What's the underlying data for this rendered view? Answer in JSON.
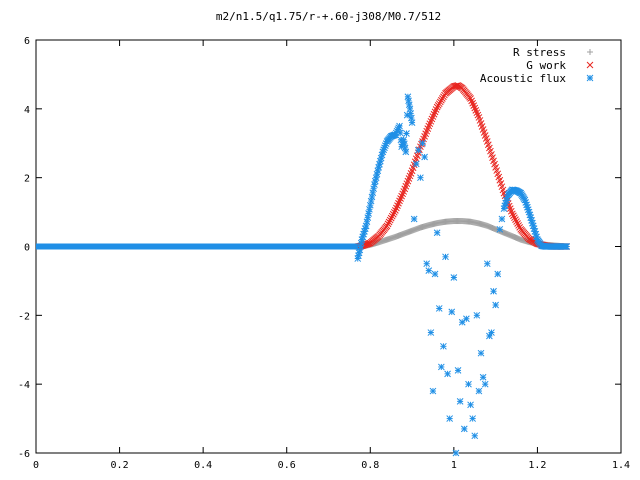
{
  "chart_data": {
    "type": "scatter",
    "title": "m2/n1.5/q1.75/r-+.60-j308/M0.7/512",
    "xlabel": "",
    "ylabel": "",
    "xlim": [
      0,
      1.4
    ],
    "ylim": [
      -6,
      6
    ],
    "x_ticks": [
      0,
      0.2,
      0.4,
      0.6,
      0.8,
      1,
      1.2,
      1.4
    ],
    "x_tick_labels": [
      "0",
      "0.2",
      "0.4",
      "0.6",
      "0.8",
      "1",
      "1.2",
      "1.4"
    ],
    "y_ticks": [
      -6,
      -4,
      -2,
      0,
      2,
      4,
      6
    ],
    "y_tick_labels": [
      "-6",
      "-4",
      "-2",
      "0",
      "2",
      "4",
      "6"
    ],
    "grid": false,
    "legend_position": "top-right",
    "series": [
      {
        "name": "R stress",
        "marker": "plus",
        "color": "#a0a0a0",
        "x": [
          0.78,
          0.8,
          0.82,
          0.84,
          0.86,
          0.88,
          0.9,
          0.92,
          0.94,
          0.96,
          0.98,
          1.0,
          1.02,
          1.04,
          1.06,
          1.08,
          1.1,
          1.12,
          1.14,
          1.16,
          1.18,
          1.2,
          1.22,
          1.24,
          1.26,
          1.27
        ],
        "y": [
          0.0,
          0.05,
          0.12,
          0.2,
          0.28,
          0.37,
          0.46,
          0.55,
          0.62,
          0.68,
          0.72,
          0.74,
          0.74,
          0.72,
          0.67,
          0.6,
          0.5,
          0.4,
          0.3,
          0.2,
          0.13,
          0.08,
          0.05,
          0.03,
          0.01,
          0.0
        ]
      },
      {
        "name": "G work",
        "marker": "cross",
        "color": "#e8251f",
        "x": [
          0.77,
          0.78,
          0.8,
          0.82,
          0.84,
          0.86,
          0.88,
          0.9,
          0.92,
          0.94,
          0.96,
          0.98,
          1.0,
          1.01,
          1.02,
          1.04,
          1.06,
          1.08,
          1.1,
          1.12,
          1.14,
          1.16,
          1.18,
          1.2,
          1.22,
          1.24,
          1.26,
          1.27
        ],
        "y": [
          0.0,
          0.02,
          0.1,
          0.3,
          0.6,
          1.05,
          1.6,
          2.2,
          2.9,
          3.5,
          4.05,
          4.45,
          4.65,
          4.68,
          4.6,
          4.3,
          3.75,
          3.05,
          2.3,
          1.55,
          0.95,
          0.5,
          0.22,
          0.08,
          0.02,
          0.0,
          0.0,
          0.0
        ]
      },
      {
        "name": "Acoustic flux",
        "marker": "star",
        "color": "#1f8fe6",
        "baseline_x": [
          0,
          0.77
        ],
        "x": [
          0.77,
          0.775,
          0.78,
          0.79,
          0.8,
          0.81,
          0.82,
          0.83,
          0.84,
          0.85,
          0.86,
          0.87,
          0.875,
          0.88,
          0.885,
          0.89,
          0.895,
          0.9,
          0.905,
          0.91,
          0.915,
          0.92,
          0.925,
          0.93,
          0.935,
          0.94,
          0.945,
          0.95,
          0.955,
          0.96,
          0.965,
          0.97,
          0.975,
          0.98,
          0.985,
          0.99,
          0.995,
          1.0,
          1.005,
          1.01,
          1.015,
          1.02,
          1.025,
          1.03,
          1.035,
          1.04,
          1.045,
          1.05,
          1.055,
          1.06,
          1.065,
          1.07,
          1.075,
          1.08,
          1.085,
          1.09,
          1.095,
          1.1,
          1.105,
          1.11,
          1.115,
          1.12,
          1.13,
          1.14,
          1.15,
          1.16,
          1.17,
          1.18,
          1.19,
          1.2,
          1.21,
          1.22,
          1.23,
          1.24,
          1.25,
          1.26,
          1.27
        ],
        "y": [
          -0.35,
          -0.1,
          0.2,
          0.6,
          1.2,
          1.8,
          2.3,
          2.75,
          3.05,
          3.2,
          3.25,
          3.5,
          2.9,
          3.1,
          2.75,
          4.35,
          4.0,
          3.6,
          0.8,
          2.4,
          2.8,
          2.0,
          3.0,
          2.6,
          -0.5,
          -0.7,
          -2.5,
          -4.2,
          -0.8,
          0.4,
          -1.8,
          -3.5,
          -2.9,
          -0.3,
          -3.7,
          -5.0,
          -1.9,
          -0.9,
          -6.0,
          -3.6,
          -4.5,
          -2.2,
          -5.3,
          -2.1,
          -4.0,
          -4.6,
          -5.0,
          -5.5,
          -2.0,
          -4.2,
          -3.1,
          -3.8,
          -4.0,
          -0.5,
          -2.6,
          -2.5,
          -1.3,
          -1.7,
          -0.8,
          0.5,
          0.8,
          1.1,
          1.5,
          1.65,
          1.62,
          1.55,
          1.35,
          1.0,
          0.6,
          0.2,
          0.02,
          0.0,
          0.0,
          0.0,
          0.0,
          0.0,
          0.0
        ]
      }
    ]
  }
}
